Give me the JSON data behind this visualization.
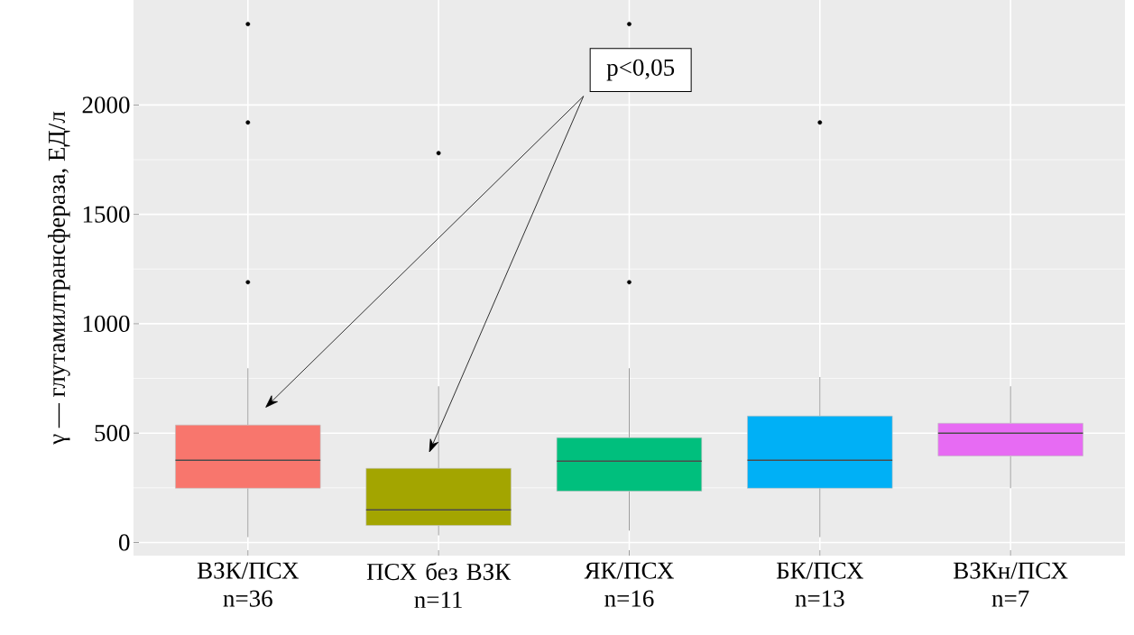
{
  "chart_data": {
    "type": "box",
    "ylabel": "γ — глутамилтрансфераза, ЕД/л",
    "categories": [
      "ВЗК/ПСХ\nn=36",
      "ПСХ без ВЗК\nn=11",
      "ЯК/ПСХ\nn=16",
      "БК/ПСХ\nn=13",
      "ВЗКн/ПСХ\nn=7"
    ],
    "colors": [
      "#f8766d",
      "#a3a500",
      "#00bf7d",
      "#00b0f6",
      "#e76bf3"
    ],
    "boxes": [
      {
        "low": 25,
        "q1": 248,
        "median": 376,
        "q3": 537,
        "high": 797,
        "outliers": [
          1190,
          1920,
          2370
        ]
      },
      {
        "low": 33,
        "q1": 78,
        "median": 149,
        "q3": 339,
        "high": 714,
        "outliers": [
          1780
        ]
      },
      {
        "low": 54,
        "q1": 235,
        "median": 372,
        "q3": 479,
        "high": 797,
        "outliers": [
          1190,
          2370
        ]
      },
      {
        "low": 25,
        "q1": 248,
        "median": 376,
        "q3": 578,
        "high": 756,
        "outliers": [
          1920
        ]
      },
      {
        "low": 248,
        "q1": 396,
        "median": 500,
        "q3": 545,
        "high": 714
      }
    ],
    "ylim": [
      -60,
      2480
    ],
    "yticks": [
      0,
      500,
      1000,
      1500,
      2000
    ],
    "grid": true,
    "annotations": [
      "p<0,05"
    ]
  }
}
